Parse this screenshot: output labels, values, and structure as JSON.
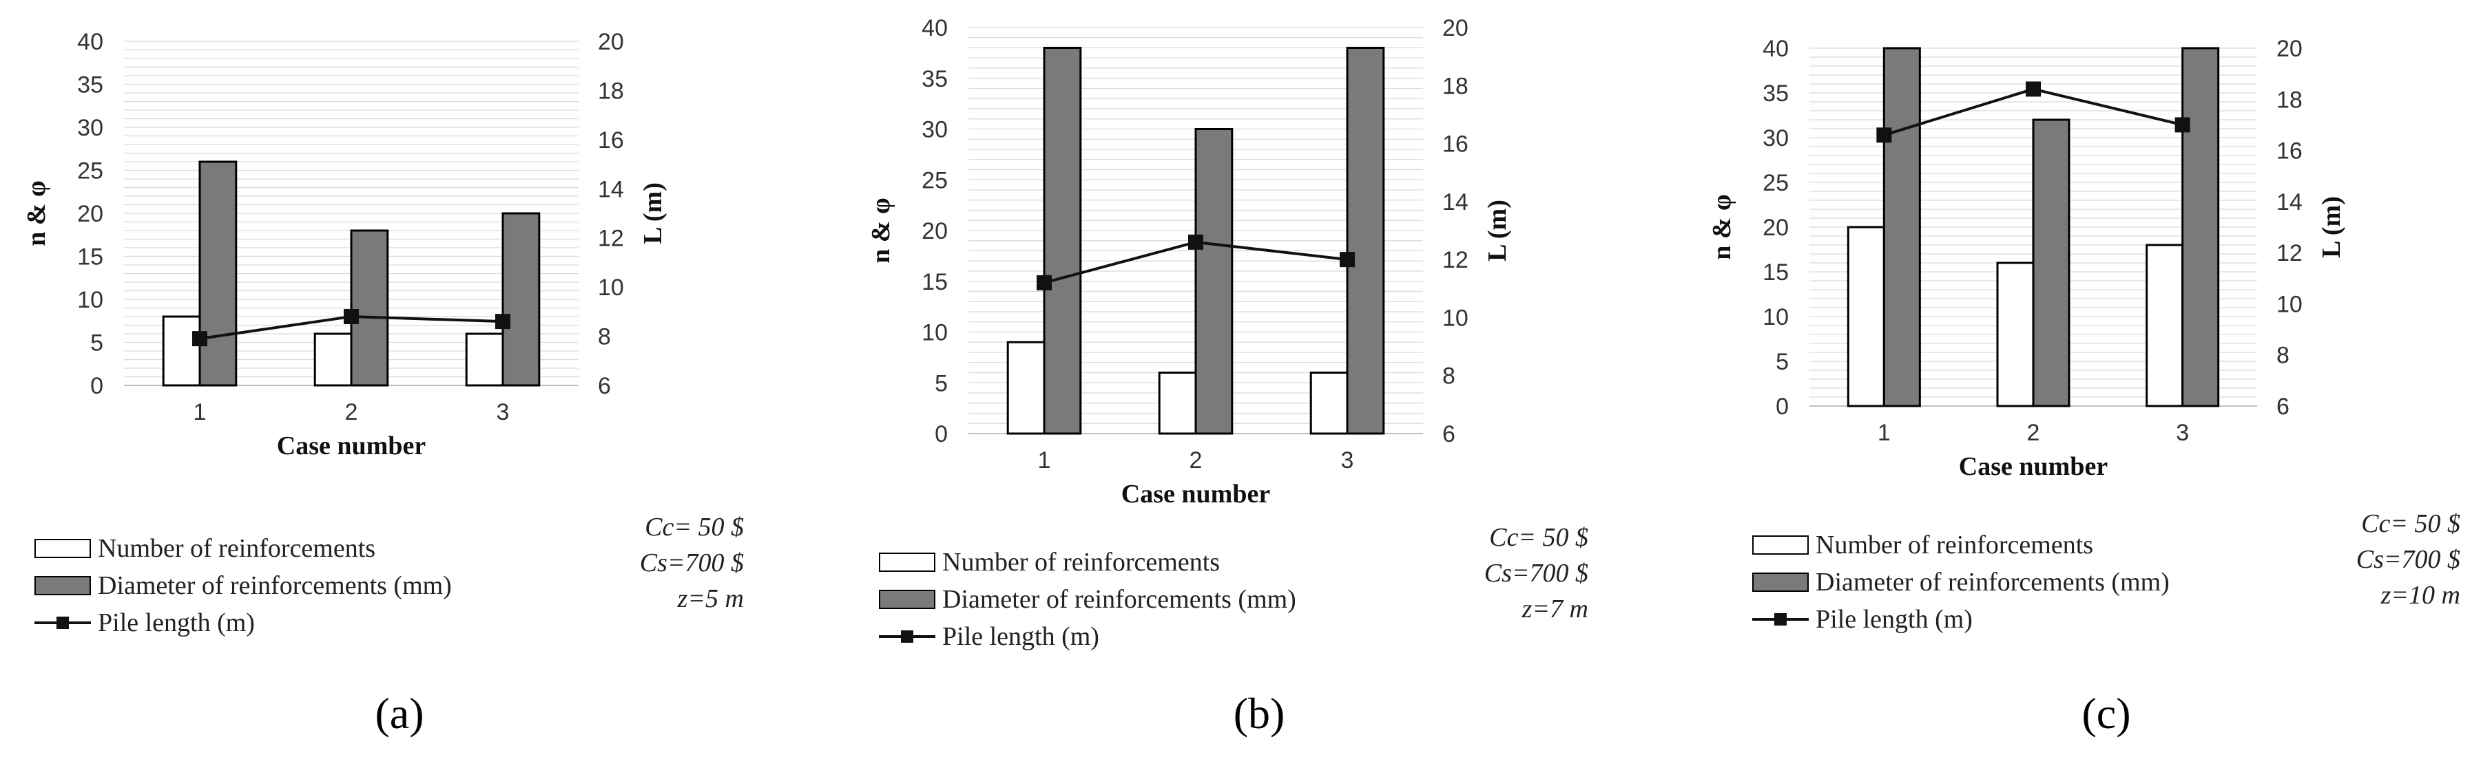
{
  "colors": {
    "bar_white": "#ffffff",
    "bar_gray": "#7a7a7a",
    "line": "#111111",
    "grid": "#d9d9d9",
    "edge": "#000000"
  },
  "panels": [
    {
      "label": "(a)",
      "legend": [
        "Number of reinforcements",
        "Diameter of reinforcements (mm)",
        "Pile length (m)"
      ],
      "params": [
        "Cc= 50 $",
        "Cs=700 $",
        "z=5 m"
      ]
    },
    {
      "label": "(b)",
      "legend": [
        "Number of reinforcements",
        "Diameter of reinforcements (mm)",
        "Pile length (m)"
      ],
      "params": [
        "Cc= 50 $",
        "Cs=700 $",
        "z=7 m"
      ]
    },
    {
      "label": "(c)",
      "legend": [
        "Number of reinforcements",
        "Diameter of reinforcements (mm)",
        "Pile length (m)"
      ],
      "params": [
        "Cc= 50 $",
        "Cs=700 $",
        "z=10 m"
      ]
    }
  ],
  "chart_data": [
    {
      "type": "bar",
      "xlabel": "Case number",
      "ylabel": "n & φ",
      "y2label": "L (m)",
      "categories": [
        "1",
        "2",
        "3"
      ],
      "ylim": [
        0,
        40
      ],
      "y2lim": [
        6,
        20
      ],
      "yticks": [
        0,
        5,
        10,
        15,
        20,
        25,
        30,
        35,
        40
      ],
      "y2ticks": [
        6,
        8,
        10,
        12,
        14,
        16,
        18,
        20
      ],
      "grid": true,
      "legend_position": "bottom-left",
      "series": [
        {
          "name": "Number of reinforcements",
          "type": "bar",
          "axis": "left",
          "values": [
            8,
            6,
            6
          ]
        },
        {
          "name": "Diameter of reinforcements (mm)",
          "type": "bar",
          "axis": "left",
          "values": [
            26,
            18,
            20
          ]
        },
        {
          "name": "Pile length (m)",
          "type": "line",
          "axis": "right",
          "values": [
            7.9,
            8.8,
            8.6
          ]
        }
      ]
    },
    {
      "type": "bar",
      "xlabel": "Case number",
      "ylabel": "n & φ",
      "y2label": "L (m)",
      "categories": [
        "1",
        "2",
        "3"
      ],
      "ylim": [
        0,
        40
      ],
      "y2lim": [
        6,
        20
      ],
      "yticks": [
        0,
        5,
        10,
        15,
        20,
        25,
        30,
        35,
        40
      ],
      "y2ticks": [
        6,
        8,
        10,
        12,
        14,
        16,
        18,
        20
      ],
      "grid": true,
      "legend_position": "bottom-left",
      "series": [
        {
          "name": "Number of reinforcements",
          "type": "bar",
          "axis": "left",
          "values": [
            9,
            6,
            6
          ]
        },
        {
          "name": "Diameter of reinforcements (mm)",
          "type": "bar",
          "axis": "left",
          "values": [
            38,
            30,
            38
          ]
        },
        {
          "name": "Pile length (m)",
          "type": "line",
          "axis": "right",
          "values": [
            11.2,
            12.6,
            12.0
          ]
        }
      ]
    },
    {
      "type": "bar",
      "xlabel": "Case number",
      "ylabel": "n & φ",
      "y2label": "L (m)",
      "categories": [
        "1",
        "2",
        "3"
      ],
      "ylim": [
        0,
        40
      ],
      "y2lim": [
        6,
        20
      ],
      "yticks": [
        0,
        5,
        10,
        15,
        20,
        25,
        30,
        35,
        40
      ],
      "y2ticks": [
        6,
        8,
        10,
        12,
        14,
        16,
        18,
        20
      ],
      "grid": true,
      "legend_position": "bottom-left",
      "series": [
        {
          "name": "Number of reinforcements",
          "type": "bar",
          "axis": "left",
          "values": [
            20,
            16,
            18
          ]
        },
        {
          "name": "Diameter of reinforcements (mm)",
          "type": "bar",
          "axis": "left",
          "values": [
            40,
            32,
            40
          ]
        },
        {
          "name": "Pile length (m)",
          "type": "line",
          "axis": "right",
          "values": [
            16.6,
            18.4,
            17.0
          ]
        }
      ]
    }
  ]
}
